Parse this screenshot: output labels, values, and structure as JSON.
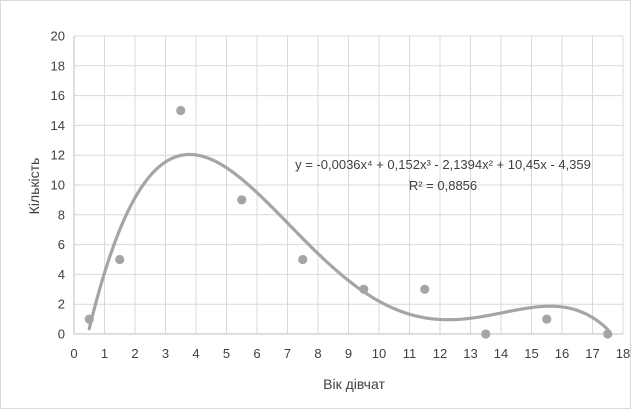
{
  "chart_data": {
    "type": "scatter",
    "title": "",
    "xlabel": "Вік дівчат",
    "ylabel": "Кількість",
    "xlim": [
      0,
      18
    ],
    "ylim": [
      0,
      20
    ],
    "x_ticks": [
      0,
      1,
      2,
      3,
      4,
      5,
      6,
      7,
      8,
      9,
      10,
      11,
      12,
      13,
      14,
      15,
      16,
      17,
      18
    ],
    "x_tick_labels": [
      "0",
      "1",
      "2",
      "3",
      "4",
      "5",
      "6",
      "7",
      "8",
      "9",
      "10",
      "11",
      "12",
      "13",
      "14",
      "15",
      "16",
      "17",
      "18"
    ],
    "y_ticks": [
      0,
      2,
      4,
      6,
      8,
      10,
      12,
      14,
      16,
      18,
      20
    ],
    "y_tick_labels": [
      "0",
      "2",
      "4",
      "6",
      "8",
      "10",
      "12",
      "14",
      "16",
      "18",
      "20"
    ],
    "grid": true,
    "series": [
      {
        "x": [
          0.5,
          1.5,
          3.5,
          5.5,
          7.5,
          9.5,
          11.5,
          13.5,
          15.5,
          17.5
        ],
        "y": [
          1,
          5,
          15,
          9,
          5,
          3,
          3,
          0,
          1,
          0
        ],
        "color": "#a5a5a5"
      }
    ],
    "trendline": {
      "type": "polynomial",
      "order": 4,
      "coefficients": [
        -0.0036,
        0.152,
        -2.1394,
        10.45,
        -4.359
      ],
      "x_range": [
        0.5,
        17.5
      ],
      "color": "#a5a5a5",
      "equation_text": "y = -0,0036x⁴ + 0,152x³ - 2,1394x² + 10,45x - 4,359",
      "r2_text": "R² = 0,8856"
    }
  }
}
